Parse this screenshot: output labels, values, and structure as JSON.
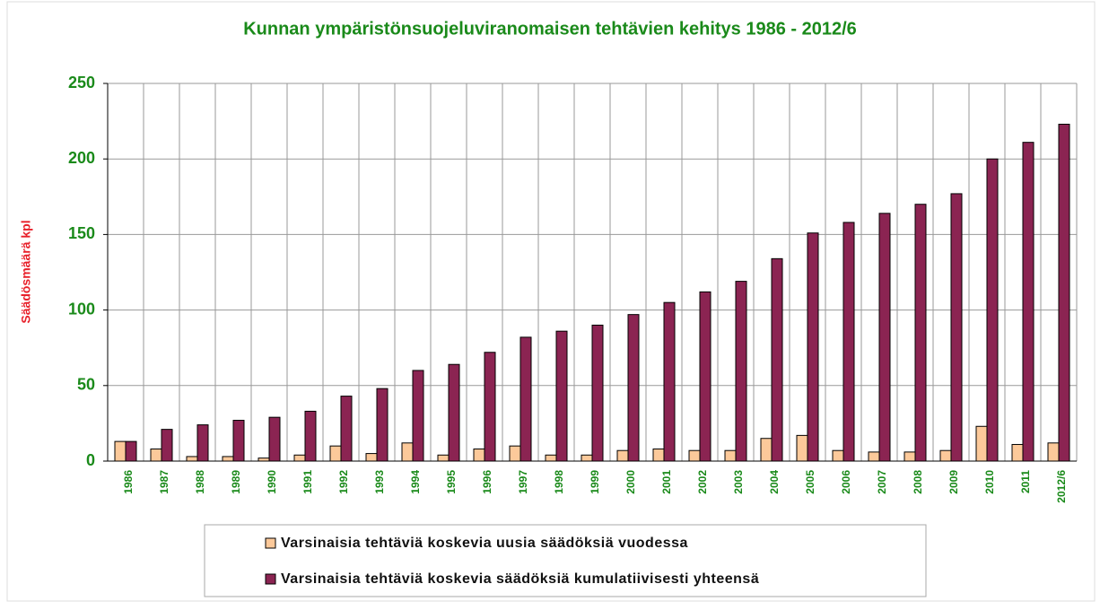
{
  "chart_data": {
    "type": "bar",
    "title": "Kunnan ympäristönsuojeluviranomaisen tehtävien kehitys 1986 - 2012/6",
    "y_label": "Säädösmäärä kpl",
    "categories": [
      "1986",
      "1987",
      "1988",
      "1989",
      "1990",
      "1991",
      "1992",
      "1993",
      "1994",
      "1995",
      "1996",
      "1997",
      "1998",
      "1999",
      "2000",
      "2001",
      "2002",
      "2003",
      "2004",
      "2005",
      "2006",
      "2007",
      "2008",
      "2009",
      "2010",
      "2011",
      "2012/6"
    ],
    "series": [
      {
        "name": "Varsinaisia tehtäviä koskevia uusia säädöksiä vuodessa",
        "color": "#fcc99a",
        "values": [
          13,
          8,
          3,
          3,
          2,
          4,
          10,
          5,
          12,
          4,
          8,
          10,
          4,
          4,
          7,
          8,
          7,
          7,
          15,
          17,
          7,
          6,
          6,
          7,
          23,
          11,
          12
        ]
      },
      {
        "name": "Varsinaisia tehtäviä koskevia säädöksiä kumulatiivisesti yhteensä",
        "color": "#8b2452",
        "values": [
          13,
          21,
          24,
          27,
          29,
          33,
          43,
          48,
          60,
          64,
          72,
          82,
          86,
          90,
          97,
          105,
          112,
          119,
          134,
          151,
          158,
          164,
          170,
          177,
          200,
          211,
          223
        ]
      }
    ],
    "ylim": [
      0,
      250
    ],
    "yticks": [
      0,
      50,
      100,
      150,
      200,
      250
    ],
    "grid": true
  }
}
